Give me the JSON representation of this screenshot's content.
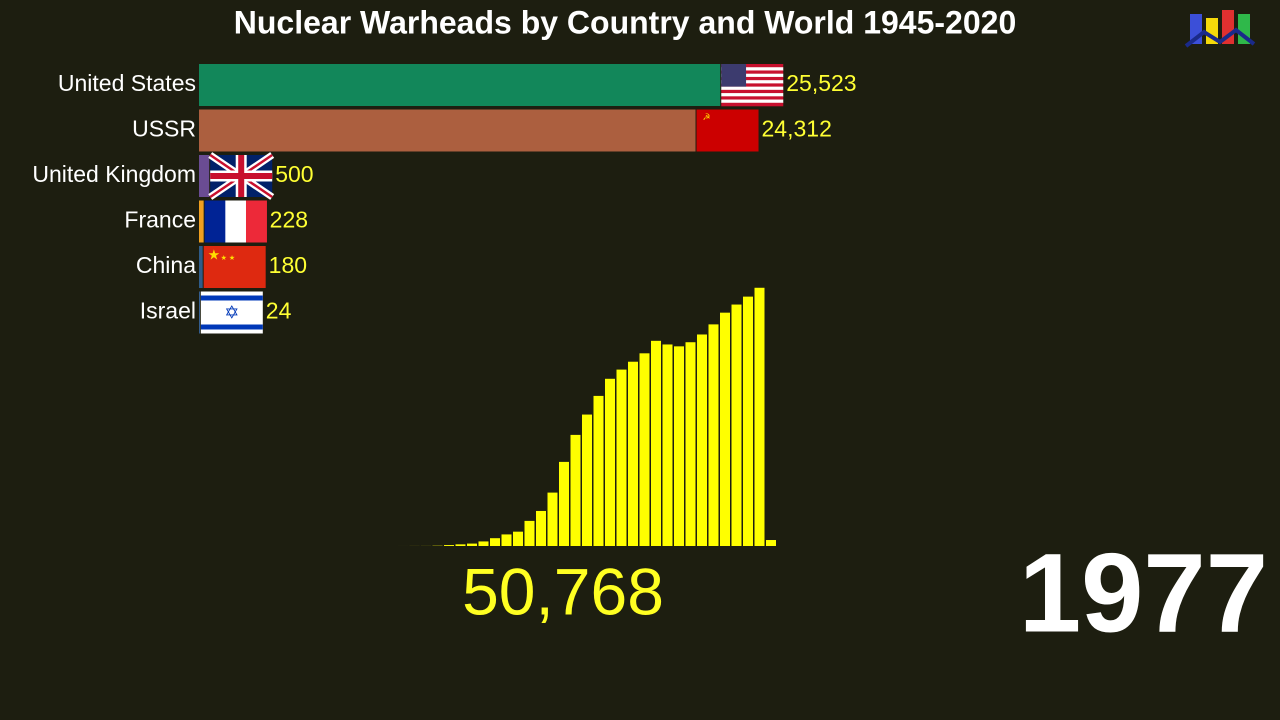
{
  "title": "Nuclear Warheads by Country and World 1945-2020",
  "year": "1977",
  "chart_data": [
    {
      "type": "hbar",
      "categories": [
        "United States",
        "USSR",
        "United Kingdom",
        "France",
        "China",
        "Israel"
      ],
      "values": [
        25523,
        24312,
        500,
        228,
        180,
        24
      ],
      "value_labels": [
        "25,523",
        "24,312",
        "500",
        "228",
        "180",
        "24"
      ],
      "colors": [
        "#12875a",
        "#ac5f3f",
        "#6a4c93",
        "#f0a020",
        "#2f5c8a",
        "#3a6fb0"
      ],
      "xlim": [
        0,
        26000
      ]
    },
    {
      "type": "bar",
      "values": [
        2,
        9,
        13,
        50,
        171,
        304,
        443,
        841,
        1436,
        2130,
        2636,
        4618,
        6444,
        9822,
        15468,
        20434,
        24173,
        27605,
        30751,
        32442,
        33890,
        35436,
        37733,
        37064,
        36717,
        37475,
        38900,
        40758,
        42912,
        44405,
        45862,
        47490,
        1100
      ],
      "color": "#ffff00",
      "ylim": [
        0,
        48000
      ],
      "total": "50,768"
    }
  ]
}
